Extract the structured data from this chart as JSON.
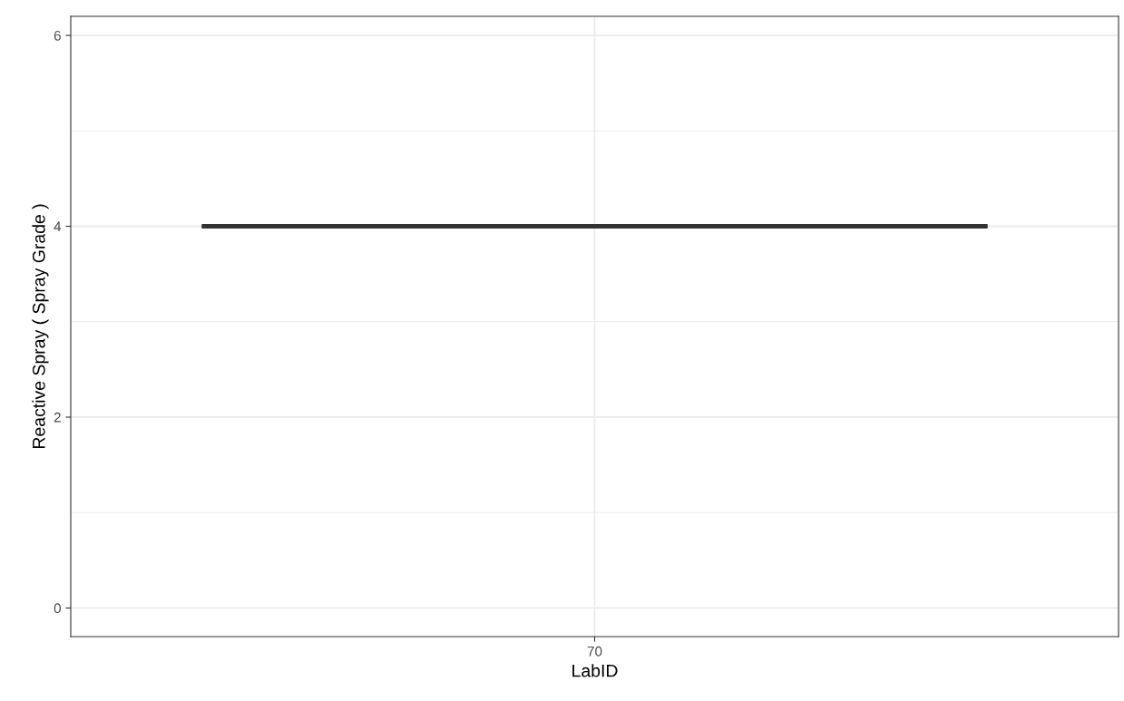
{
  "chart_data": {
    "type": "box",
    "xlabel": "LabID",
    "ylabel": "Reactive Spray ( Spray Grade )",
    "categories": [
      "70"
    ],
    "boxes": [
      {
        "low": 4,
        "q1": 4,
        "median": 4,
        "q3": 4,
        "high": 4
      }
    ],
    "color": "#333333",
    "ylim": [
      -0.3,
      6.2
    ],
    "yticks": [
      0,
      {
        "value": 1,
        "label": null
      },
      2,
      {
        "value": 3,
        "label": null
      },
      4,
      {
        "value": 5,
        "label": null
      },
      6
    ],
    "grid": true,
    "legend": false
  }
}
